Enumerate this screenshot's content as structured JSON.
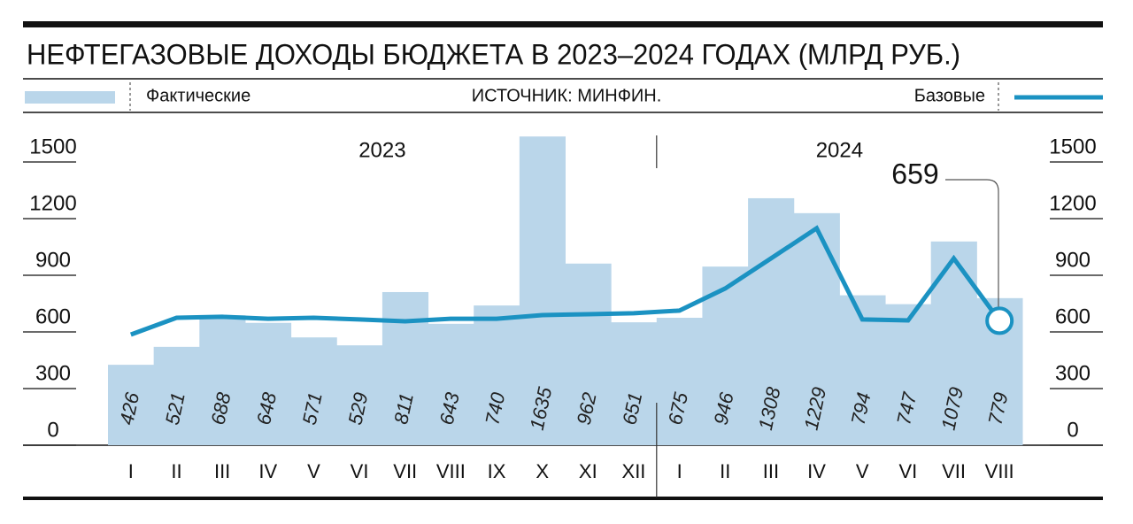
{
  "chart_data": {
    "type": "bar",
    "title": "НЕФТЕГАЗОВЫЕ ДОХОДЫ БЮДЖЕТА В 2023–2024 ГОДАХ (МЛРД РУБ.)",
    "source": "ИСТОЧНИК: МИНФИН.",
    "groups": [
      "2023",
      "2024"
    ],
    "categories": [
      "I",
      "II",
      "III",
      "IV",
      "V",
      "VI",
      "VII",
      "VIII",
      "IX",
      "X",
      "XI",
      "XII",
      "I",
      "II",
      "III",
      "IV",
      "V",
      "VI",
      "VII",
      "VIII"
    ],
    "series": [
      {
        "name": "Фактические",
        "type": "bar",
        "color": "#bad6ea",
        "values": [
          426,
          521,
          688,
          648,
          571,
          529,
          811,
          643,
          740,
          1635,
          962,
          651,
          675,
          946,
          1308,
          1229,
          794,
          747,
          1079,
          779
        ]
      },
      {
        "name": "Базовые",
        "type": "line",
        "color": "#1b92c2",
        "values": [
          586,
          675,
          680,
          670,
          675,
          666,
          656,
          670,
          670,
          689,
          694,
          699,
          713,
          830,
          989,
          1149,
          666,
          661,
          989,
          659
        ]
      }
    ],
    "ylim": [
      0,
      1500
    ],
    "yticks": [
      0,
      300,
      600,
      900,
      1200,
      1500
    ],
    "y2lim": [
      0,
      1500
    ],
    "y2ticks": [
      0,
      300,
      600,
      900,
      1200,
      1500
    ]
  }
}
